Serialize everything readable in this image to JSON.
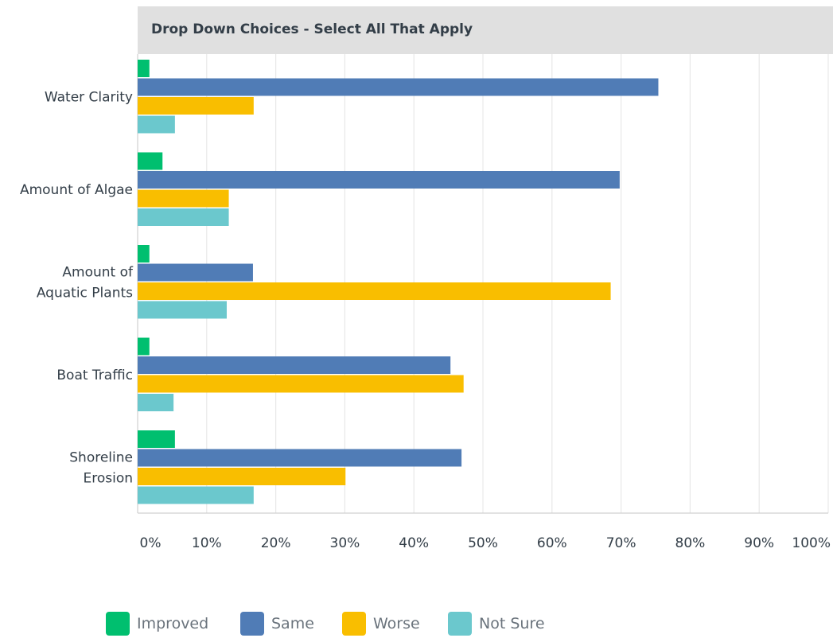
{
  "header": {
    "title": "Drop Down Choices - Select All That Apply"
  },
  "chart_data": {
    "type": "bar",
    "orientation": "horizontal",
    "title": "Drop Down Choices - Select All That Apply",
    "categories": [
      "Water Clarity",
      "Amount of Algae",
      "Amount of Aquatic Plants",
      "Boat Traffic",
      "Shoreline Erosion"
    ],
    "category_lines": [
      [
        "Water Clarity"
      ],
      [
        "Amount of Algae"
      ],
      [
        "Amount of",
        "Aquatic Plants"
      ],
      [
        "Boat Traffic"
      ],
      [
        "Shoreline",
        "Erosion"
      ]
    ],
    "series": [
      {
        "name": "Improved",
        "color": "#00bf6f",
        "values": [
          1.7,
          3.6,
          1.7,
          1.7,
          5.4
        ]
      },
      {
        "name": "Same",
        "color": "#507cb6",
        "values": [
          75.4,
          69.8,
          16.7,
          45.3,
          46.9
        ]
      },
      {
        "name": "Worse",
        "color": "#f9be00",
        "values": [
          16.8,
          13.2,
          68.5,
          47.2,
          30.1
        ]
      },
      {
        "name": "Not Sure",
        "color": "#6bc8cd",
        "values": [
          5.4,
          13.2,
          12.9,
          5.2,
          16.8
        ]
      }
    ],
    "xlim": [
      0,
      100
    ],
    "ticks": [
      "0%",
      "10%",
      "20%",
      "30%",
      "40%",
      "50%",
      "60%",
      "70%",
      "80%",
      "90%",
      "100%"
    ],
    "grid": true,
    "legend_position": "bottom"
  }
}
